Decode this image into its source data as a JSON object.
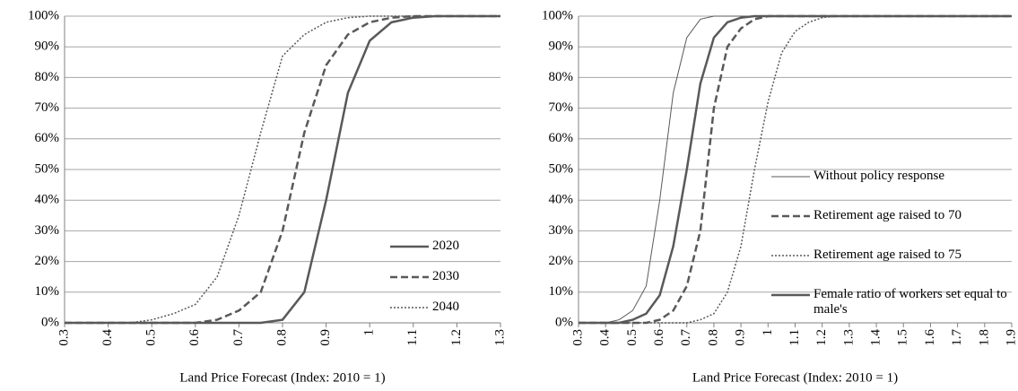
{
  "chart_data": [
    {
      "type": "line",
      "x_label": "Land Price Forecast (Index: 2010 = 1)",
      "x": [
        0.3,
        0.35,
        0.4,
        0.45,
        0.5,
        0.55,
        0.6,
        0.65,
        0.7,
        0.75,
        0.8,
        0.85,
        0.9,
        0.95,
        1.0,
        1.05,
        1.1,
        1.15,
        1.2,
        1.25,
        1.3
      ],
      "series": [
        {
          "name": "2020",
          "color": "#595959",
          "line_style": "solid",
          "line_width": 2.5,
          "values": [
            0,
            0,
            0,
            0,
            0,
            0,
            0,
            0,
            0,
            0,
            1,
            10,
            40,
            75,
            92,
            98,
            99.5,
            100,
            100,
            100,
            100
          ]
        },
        {
          "name": "2030",
          "color": "#595959",
          "line_style": "dashed",
          "line_width": 2.5,
          "values": [
            0,
            0,
            0,
            0,
            0,
            0,
            0,
            1,
            4,
            10,
            30,
            62,
            84,
            94,
            98,
            99.5,
            100,
            100,
            100,
            100,
            100
          ]
        },
        {
          "name": "2040",
          "color": "#595959",
          "line_style": "dotted",
          "line_width": 1.5,
          "values": [
            0,
            0,
            0,
            0,
            1,
            3,
            6,
            15,
            35,
            62,
            87,
            94,
            98,
            99.5,
            100,
            100,
            100,
            100,
            100,
            100,
            100
          ]
        }
      ],
      "xlim": [
        0.3,
        1.3
      ],
      "xticks": [
        0.3,
        0.4,
        0.5,
        0.6,
        0.7,
        0.8,
        0.9,
        1.0,
        1.1,
        1.2,
        1.3
      ],
      "ylim": [
        0,
        100
      ],
      "yticks": [
        {
          "value": 0,
          "label": "0%"
        },
        {
          "value": 10,
          "label": "10%"
        },
        {
          "value": 20,
          "label": "20%"
        },
        {
          "value": 30,
          "label": "30%"
        },
        {
          "value": 40,
          "label": "40%"
        },
        {
          "value": 50,
          "label": "50%"
        },
        {
          "value": 60,
          "label": "60%"
        },
        {
          "value": 70,
          "label": "70%"
        },
        {
          "value": 80,
          "label": "80%"
        },
        {
          "value": 90,
          "label": "90%"
        },
        {
          "value": 100,
          "label": "100%"
        }
      ],
      "grid": true,
      "legend": "lower right"
    },
    {
      "type": "line",
      "x_label": "Land Price Forecast (Index: 2010 = 1)",
      "x": [
        0.3,
        0.35,
        0.4,
        0.45,
        0.5,
        0.55,
        0.6,
        0.65,
        0.7,
        0.75,
        0.8,
        0.85,
        0.9,
        0.95,
        1.0,
        1.05,
        1.1,
        1.15,
        1.2,
        1.25,
        1.3,
        1.35,
        1.4,
        1.45,
        1.5,
        1.55,
        1.6,
        1.65,
        1.7,
        1.75,
        1.8,
        1.85,
        1.9
      ],
      "series": [
        {
          "name": "Without policy response",
          "color": "#595959",
          "line_style": "solid",
          "line_width": 1,
          "values": [
            0,
            0,
            0,
            1,
            4,
            12,
            40,
            75,
            93,
            99,
            100,
            100,
            100,
            100,
            100,
            100,
            100,
            100,
            100,
            100,
            100,
            100,
            100,
            100,
            100,
            100,
            100,
            100,
            100,
            100,
            100,
            100,
            100
          ]
        },
        {
          "name": "Retirement age raised to 70",
          "color": "#595959",
          "line_style": "dashed",
          "line_width": 2.5,
          "values": [
            0,
            0,
            0,
            0,
            0,
            0,
            1,
            4,
            12,
            30,
            70,
            90,
            96,
            99,
            100,
            100,
            100,
            100,
            100,
            100,
            100,
            100,
            100,
            100,
            100,
            100,
            100,
            100,
            100,
            100,
            100,
            100,
            100
          ]
        },
        {
          "name": "Retirement age raised to 75",
          "color": "#595959",
          "line_style": "dotted",
          "line_width": 1.5,
          "values": [
            0,
            0,
            0,
            0,
            0,
            0,
            0,
            0,
            0,
            1,
            3,
            10,
            25,
            50,
            72,
            88,
            95,
            98,
            99.5,
            100,
            100,
            100,
            100,
            100,
            100,
            100,
            100,
            100,
            100,
            100,
            100,
            100,
            100
          ]
        },
        {
          "name": "Female ratio of workers set equal to male's",
          "color": "#595959",
          "line_style": "solid",
          "line_width": 2.5,
          "values": [
            0,
            0,
            0,
            0,
            1,
            3,
            9,
            25,
            50,
            78,
            93,
            98,
            99.5,
            100,
            100,
            100,
            100,
            100,
            100,
            100,
            100,
            100,
            100,
            100,
            100,
            100,
            100,
            100,
            100,
            100,
            100,
            100,
            100
          ]
        }
      ],
      "xlim": [
        0.3,
        1.9
      ],
      "xticks": [
        0.3,
        0.4,
        0.5,
        0.6,
        0.7,
        0.8,
        0.9,
        1.0,
        1.1,
        1.2,
        1.3,
        1.4,
        1.5,
        1.6,
        1.7,
        1.8,
        1.9
      ],
      "ylim": [
        0,
        100
      ],
      "yticks": [
        {
          "value": 0,
          "label": "0%"
        },
        {
          "value": 10,
          "label": "10%"
        },
        {
          "value": 20,
          "label": "20%"
        },
        {
          "value": 30,
          "label": "30%"
        },
        {
          "value": 40,
          "label": "40%"
        },
        {
          "value": 50,
          "label": "50%"
        },
        {
          "value": 60,
          "label": "60%"
        },
        {
          "value": 70,
          "label": "70%"
        },
        {
          "value": 80,
          "label": "80%"
        },
        {
          "value": 90,
          "label": "90%"
        },
        {
          "value": 100,
          "label": "100%"
        }
      ],
      "grid": true,
      "legend": "center right"
    }
  ]
}
